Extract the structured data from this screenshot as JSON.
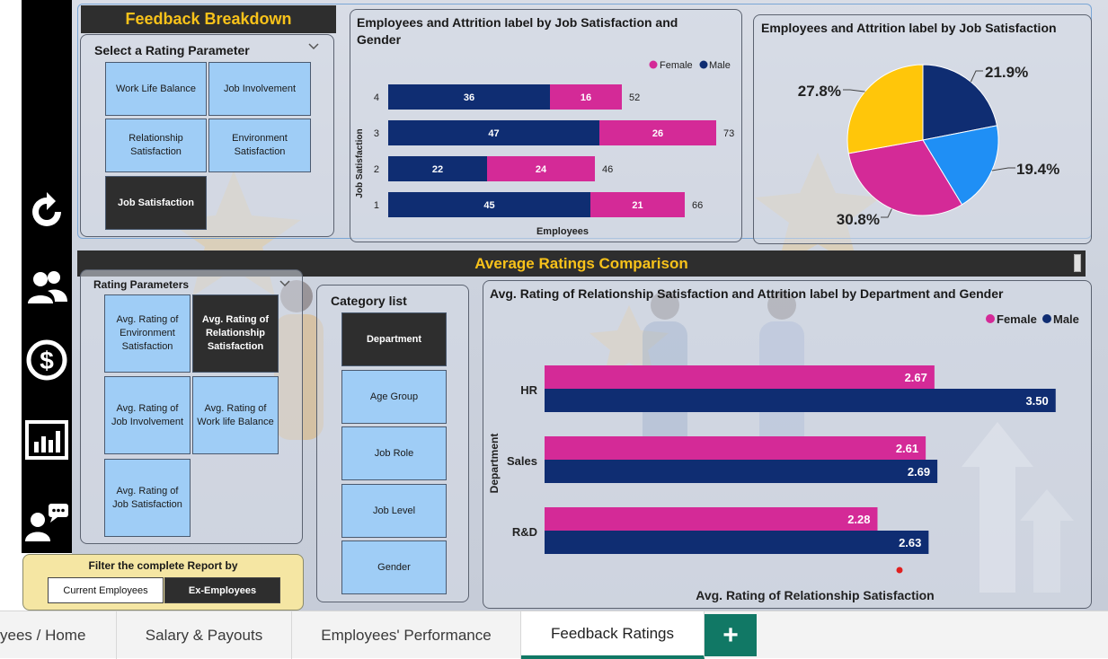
{
  "colors": {
    "female": "#d42a97",
    "male": "#0f2d72",
    "accent": "#f8c21a",
    "tile": "#9fcdf6",
    "pie_blue": "#1f8ff5",
    "pie_yellow": "#ffc60a"
  },
  "feedback": {
    "title": "Feedback Breakdown",
    "selector_label": "Select a Rating Parameter",
    "tiles": [
      "Work Life Balance",
      "Job Involvement",
      "Relationship Satisfaction",
      "Environment Satisfaction",
      "Job Satisfaction"
    ],
    "selected": "Job Satisfaction"
  },
  "bar_chart": {
    "title": "Employees and Attrition label by Job Satisfaction and Gender",
    "legend": {
      "female": "Female",
      "male": "Male"
    },
    "chart_data": {
      "type": "bar",
      "orientation": "horizontal-stacked",
      "categories": [
        "4",
        "3",
        "2",
        "1"
      ],
      "series": [
        {
          "name": "Male",
          "values": [
            36,
            47,
            22,
            45
          ]
        },
        {
          "name": "Female",
          "values": [
            16,
            26,
            24,
            21
          ]
        }
      ],
      "totals": [
        52,
        73,
        46,
        66
      ],
      "xlabel": "Employees",
      "ylabel": "Job Satisfaction"
    }
  },
  "pie_chart": {
    "title": "Employees and Attrition label by Job Satisfaction",
    "chart_data": {
      "type": "pie",
      "slices": [
        {
          "label": "21.9%",
          "value": 21.9,
          "color": "#0f2d72"
        },
        {
          "label": "19.4%",
          "value": 19.4,
          "color": "#1f8ff5"
        },
        {
          "label": "30.8%",
          "value": 30.8,
          "color": "#d42a97"
        },
        {
          "label": "27.8%",
          "value": 27.8,
          "color": "#ffc60a"
        }
      ]
    }
  },
  "avg_section": {
    "title": "Average Ratings Comparison"
  },
  "rating_params": {
    "label": "Rating Parameters",
    "tiles": [
      "Avg. Rating of Environment Satisfaction",
      "Avg. Rating of Relationship Satisfaction",
      "Avg. Rating of Job Involvement",
      "Avg. Rating of Work life Balance",
      "Avg. Rating of Job Satisfaction"
    ],
    "selected": "Avg. Rating of Relationship Satisfaction"
  },
  "category_list": {
    "label": "Category list",
    "items": [
      "Department",
      "Age Group",
      "Job Role",
      "Job Level",
      "Gender"
    ],
    "selected": "Department"
  },
  "avg_chart": {
    "title": "Avg. Rating of Relationship Satisfaction and Attrition label by Department and Gender",
    "legend": {
      "female": "Female",
      "male": "Male"
    },
    "chart_data": {
      "type": "bar",
      "orientation": "horizontal-grouped",
      "categories": [
        "HR",
        "Sales",
        "R&D"
      ],
      "series": [
        {
          "name": "Female",
          "values": [
            2.67,
            2.61,
            2.28
          ]
        },
        {
          "name": "Male",
          "values": [
            3.5,
            2.69,
            2.63
          ]
        }
      ],
      "value_labels_female": [
        "2.67",
        "2.61",
        "2.28"
      ],
      "value_labels_male": [
        "3.50",
        "2.69",
        "2.63"
      ],
      "xlabel": "Avg. Rating of Relationship Satisfaction",
      "ylabel": "Department"
    }
  },
  "filter": {
    "label": "Filter the complete Report by",
    "options": [
      "Current Employees",
      "Ex-Employees"
    ],
    "selected": "Ex-Employees"
  },
  "tabs": {
    "items": [
      "yees / Home",
      "Salary & Payouts",
      "Employees' Performance",
      "Feedback Ratings"
    ],
    "active": "Feedback Ratings",
    "add_label": "+"
  }
}
